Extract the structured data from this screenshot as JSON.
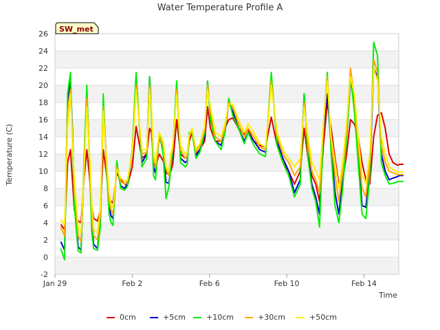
{
  "chart_data": {
    "type": "line",
    "title": "Water Temperature Profile A",
    "xlabel": "Time",
    "ylabel": "Temperature (C)",
    "site_badge": "SW_met",
    "ylim": [
      -2,
      26
    ],
    "yticks": [
      -2,
      0,
      2,
      4,
      6,
      8,
      10,
      12,
      14,
      16,
      18,
      20,
      22,
      24,
      26
    ],
    "xlim_days": [
      0,
      17.8
    ],
    "xticks": [
      {
        "day": 0,
        "label": "Jan 29"
      },
      {
        "day": 4,
        "label": "Feb 2"
      },
      {
        "day": 8,
        "label": "Feb 6"
      },
      {
        "day": 12,
        "label": "Feb 10"
      },
      {
        "day": 16,
        "label": "Feb 14"
      }
    ],
    "grid": true,
    "legend_position": "bottom",
    "x_days": [
      0.3,
      0.5,
      0.65,
      0.8,
      0.9,
      1.0,
      1.2,
      1.35,
      1.5,
      1.65,
      1.8,
      1.9,
      2.0,
      2.2,
      2.35,
      2.5,
      2.65,
      2.8,
      2.9,
      3.0,
      3.2,
      3.4,
      3.6,
      3.75,
      4.0,
      4.2,
      4.5,
      4.75,
      4.9,
      5.0,
      5.1,
      5.2,
      5.4,
      5.6,
      5.75,
      5.9,
      6.0,
      6.1,
      6.3,
      6.5,
      6.75,
      6.85,
      6.95,
      7.1,
      7.3,
      7.5,
      7.75,
      7.9,
      8.05,
      8.3,
      8.6,
      8.8,
      9.0,
      9.2,
      9.5,
      9.8,
      10.0,
      10.3,
      10.6,
      10.9,
      11.2,
      11.5,
      11.8,
      12.1,
      12.4,
      12.7,
      12.9,
      13.1,
      13.3,
      13.5,
      13.7,
      13.9,
      14.1,
      14.3,
      14.5,
      14.7,
      14.9,
      15.1,
      15.3,
      15.5,
      15.7,
      15.9,
      16.1,
      16.3,
      16.5,
      16.7,
      16.9,
      17.1,
      17.3,
      17.5,
      17.65,
      17.75,
      17.85,
      17.95,
      18.05
    ],
    "series": [
      {
        "name": "0cm",
        "color": "#dd0000",
        "values": [
          3.8,
          3.2,
          11,
          12.5,
          9,
          5.5,
          4.2,
          4.0,
          9,
          12.5,
          9,
          6,
          4.5,
          4.2,
          5.5,
          12.5,
          10,
          7,
          6.5,
          6.3,
          9.8,
          9.0,
          8.5,
          8.3,
          10.5,
          15.2,
          11.5,
          12,
          15,
          14.5,
          11,
          10.5,
          12,
          11.2,
          9.8,
          9.6,
          10,
          10.8,
          16,
          12,
          11.5,
          11.8,
          13.5,
          14.5,
          12.0,
          12.5,
          13.5,
          17.5,
          15,
          13.5,
          13.5,
          15,
          16,
          16.2,
          15,
          14.3,
          14.8,
          13.5,
          13.0,
          12.8,
          16.3,
          13,
          11,
          10,
          8.5,
          10,
          15,
          11.5,
          9.5,
          8.5,
          6.5,
          13,
          18,
          15,
          11.5,
          8.5,
          9,
          12,
          16,
          15.5,
          14,
          11,
          9,
          8.5,
          14,
          16.5,
          16.8,
          15,
          12,
          11,
          10.8,
          10.7,
          10.8,
          10.8,
          10.8
        ]
      },
      {
        "name": "+5cm",
        "color": "#0000cc",
        "values": [
          1.8,
          0.8,
          18,
          20.5,
          15,
          8,
          1.2,
          0.8,
          10,
          19,
          11,
          4,
          1.5,
          1.0,
          4,
          18,
          12,
          6,
          4.8,
          4.5,
          10.5,
          8.3,
          8.0,
          8.5,
          12,
          21,
          11,
          12,
          21,
          17,
          10.5,
          9.8,
          14,
          12.5,
          8.7,
          8.6,
          10.5,
          12,
          20,
          11.5,
          11.0,
          11.2,
          14,
          14.8,
          11.8,
          12.5,
          14,
          20.5,
          16.5,
          13.5,
          13.0,
          14.5,
          18,
          17,
          15,
          13.5,
          14.5,
          13.5,
          12.5,
          12.2,
          21,
          13.5,
          11.5,
          10,
          7.5,
          9,
          19,
          12,
          8.5,
          7,
          5,
          15,
          19,
          13,
          7.5,
          5,
          9,
          14,
          20.5,
          18,
          12,
          6,
          5.8,
          10,
          22,
          21,
          12,
          10,
          9,
          9.2,
          9.3,
          9.4,
          9.5,
          9.5,
          9.5
        ]
      },
      {
        "name": "+10cm",
        "color": "#00ee00",
        "values": [
          1.0,
          -0.3,
          19,
          21.5,
          14,
          6,
          0.7,
          0.5,
          11,
          20,
          10,
          3,
          1.0,
          0.8,
          3.5,
          19,
          11,
          5,
          4.0,
          3.7,
          11.2,
          8.0,
          7.8,
          8.2,
          12.5,
          21.5,
          10.5,
          11.5,
          21,
          16,
          9.5,
          9.0,
          14.5,
          12,
          6.8,
          8.2,
          10.5,
          12.5,
          20.5,
          11,
          10.5,
          10.8,
          14.5,
          14.5,
          11.5,
          12.2,
          14.5,
          20.5,
          16,
          13.5,
          12.5,
          14.5,
          18.5,
          16.5,
          15,
          13.2,
          14.5,
          13,
          12,
          11.7,
          21.5,
          13,
          11,
          9.5,
          7.0,
          8.5,
          19,
          11.5,
          8,
          6.5,
          3.5,
          15,
          21.5,
          12,
          6,
          4,
          8,
          14,
          21,
          17,
          11,
          5,
          4.5,
          9.5,
          25,
          23.5,
          11,
          9.5,
          8.5,
          8.6,
          8.7,
          8.8,
          8.8,
          8.8,
          8.8
        ]
      },
      {
        "name": "+30cm",
        "color": "#ffa500",
        "values": [
          3.5,
          2.5,
          17,
          19.5,
          14,
          8,
          2.5,
          1.8,
          10,
          18.5,
          11,
          5,
          2.5,
          2.0,
          5,
          17.5,
          11.5,
          6.5,
          5.5,
          5.0,
          10.5,
          8.8,
          8.5,
          8.8,
          12.2,
          20,
          12,
          12.2,
          20,
          17,
          11.5,
          10.5,
          14,
          13,
          10.2,
          9.5,
          11.5,
          12.5,
          19.5,
          12.5,
          11.5,
          11.8,
          14,
          14.8,
          12.2,
          13,
          14.8,
          20,
          17,
          14,
          13.5,
          15,
          18,
          17.5,
          15.5,
          14,
          15,
          14,
          12.8,
          12.5,
          20.5,
          14,
          12,
          11,
          9.5,
          10.5,
          18,
          13,
          10,
          9,
          7.5,
          15.5,
          21,
          13.5,
          9.5,
          6.5,
          10,
          15,
          22,
          18.5,
          13,
          8,
          7,
          11,
          23,
          21.5,
          13,
          11,
          10,
          9.8,
          9.7,
          9.6,
          9.6,
          9.6,
          9.6
        ]
      },
      {
        "name": "+50cm",
        "color": "#ffee00",
        "values": [
          4.4,
          3.8,
          15,
          19,
          14,
          9,
          3.5,
          2.8,
          9.5,
          17.5,
          11.5,
          6.5,
          3.2,
          2.8,
          6,
          17,
          12,
          7.5,
          6.2,
          5.7,
          10.2,
          9.2,
          8.8,
          9.0,
          12,
          19.5,
          12.5,
          12.5,
          19.5,
          17.5,
          12,
          11,
          14.5,
          13.5,
          10.5,
          10,
          12,
          13,
          19,
          13,
          12,
          12.2,
          14.2,
          15,
          12.5,
          13.2,
          15.2,
          19.5,
          17.5,
          14.5,
          14,
          15.5,
          17.8,
          17.8,
          16,
          14.5,
          15.5,
          14.5,
          13.2,
          12.8,
          20,
          14.5,
          12.5,
          11.5,
          10.5,
          11.5,
          17.5,
          14,
          11,
          10,
          9,
          15.5,
          20.5,
          14,
          11,
          8,
          11,
          15.5,
          21,
          19,
          14,
          9.5,
          8.5,
          12,
          22,
          20.5,
          14,
          12,
          10.5,
          10.2,
          10,
          9.9,
          9.9,
          9.9,
          9.9
        ]
      }
    ]
  }
}
